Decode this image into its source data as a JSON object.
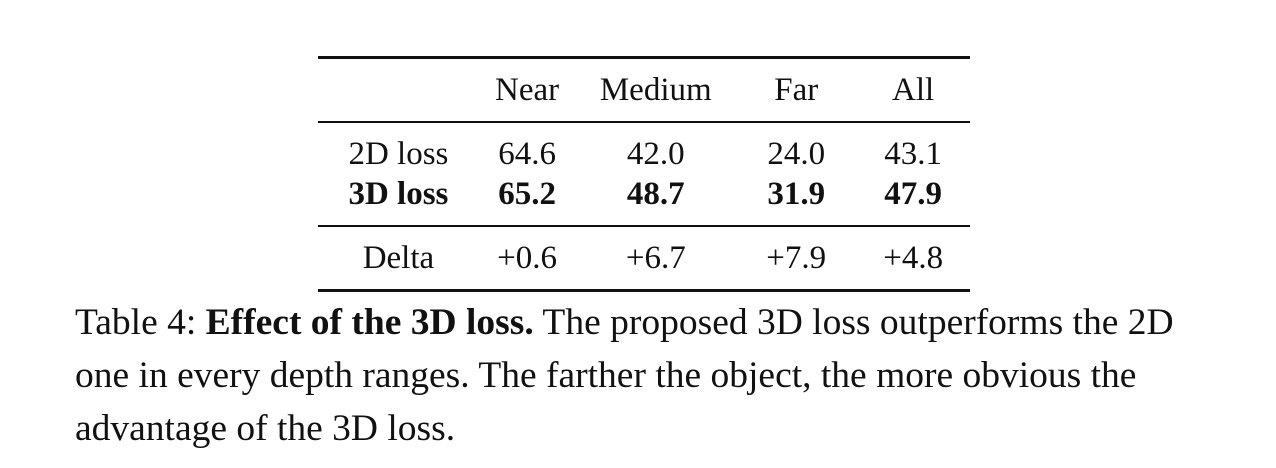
{
  "table": {
    "columns": [
      "",
      "Near",
      "Medium",
      "Far",
      "All"
    ],
    "rows": [
      {
        "label": "2D loss",
        "values": [
          "64.6",
          "42.0",
          "24.0",
          "43.1"
        ],
        "bold": false
      },
      {
        "label": "3D loss",
        "values": [
          "65.2",
          "48.7",
          "31.9",
          "47.9"
        ],
        "bold": true
      }
    ],
    "delta_row": {
      "label": "Delta",
      "values": [
        "+0.6",
        "+6.7",
        "+7.9",
        "+4.8"
      ]
    }
  },
  "caption": {
    "prefix": "Table 4: ",
    "bold_title": "Effect of the 3D loss.",
    "text": " The proposed 3D loss outperforms the 2D one in every depth ranges. The farther the object, the more obvious the advantage of the 3D loss."
  }
}
